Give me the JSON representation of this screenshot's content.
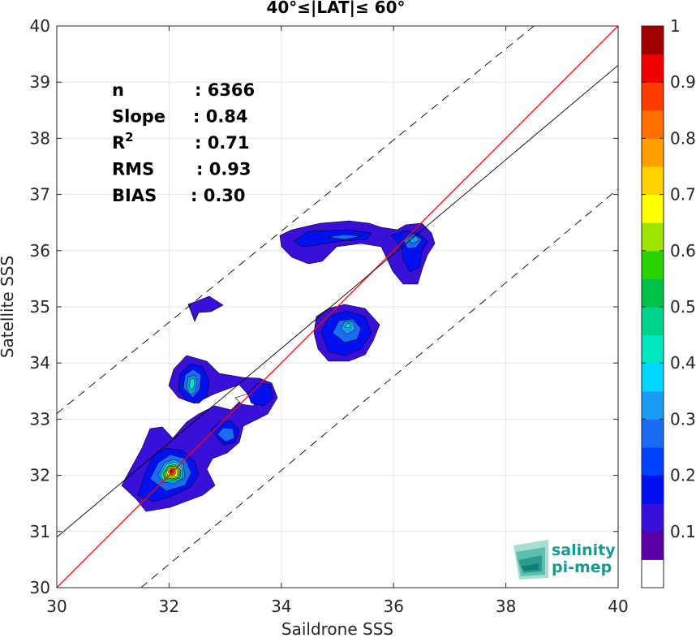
{
  "chart_data": {
    "type": "contour",
    "title": "40°≤|LAT|≤ 60°",
    "xlabel": "Saildrone SSS",
    "ylabel": "Satellite SSS",
    "xlim": [
      30,
      40
    ],
    "ylim": [
      30,
      40
    ],
    "xticks": [
      "30",
      "32",
      "34",
      "36",
      "38",
      "40"
    ],
    "yticks": [
      "30",
      "31",
      "32",
      "33",
      "34",
      "35",
      "36",
      "37",
      "38",
      "39",
      "40"
    ],
    "grid": true,
    "stats": [
      {
        "label": "n",
        "value": ": 6366"
      },
      {
        "label": "Slope",
        "value": ": 0.84"
      },
      {
        "label": "R",
        "sup": "2",
        "value": ": 0.71"
      },
      {
        "label": "RMS",
        "value": ": 0.93"
      },
      {
        "label": "BIAS",
        "value": ": 0.30"
      }
    ],
    "n": 6366,
    "slope": 0.84,
    "r2": 0.71,
    "rms": 0.93,
    "bias": 0.3,
    "lines": [
      {
        "kind": "identity",
        "color": "#ff0000",
        "x": [
          30,
          40
        ],
        "y": [
          30,
          40
        ]
      },
      {
        "kind": "regression",
        "color": "#000000",
        "x": [
          30,
          40
        ],
        "y": [
          30.9,
          39.3
        ]
      },
      {
        "kind": "upper-bound-dashed",
        "color": "#000000",
        "x": [
          30,
          38.5
        ],
        "y": [
          33.1,
          40
        ]
      },
      {
        "kind": "lower-bound-dashed",
        "color": "#000000",
        "x": [
          31.5,
          40
        ],
        "y": [
          30,
          37.1
        ]
      }
    ],
    "density_peaks": [
      {
        "x": 32.1,
        "y": 32.15,
        "value": 1.0
      },
      {
        "x": 32.4,
        "y": 33.7,
        "value": 0.42
      },
      {
        "x": 35.1,
        "y": 34.65,
        "value": 0.4
      },
      {
        "x": 35.3,
        "y": 36.22,
        "value": 0.25
      },
      {
        "x": 36.35,
        "y": 36.2,
        "value": 0.35
      },
      {
        "x": 33.05,
        "y": 32.7,
        "value": 0.3
      },
      {
        "x": 32.6,
        "y": 35.05,
        "value": 0.1
      }
    ],
    "colorbar": {
      "ticks": [
        "0.1",
        "0.2",
        "0.3",
        "0.4",
        "0.5",
        "0.6",
        "0.7",
        "0.8",
        "0.9",
        "1"
      ],
      "levels": [
        0,
        0.05,
        0.1,
        0.15,
        0.2,
        0.25,
        0.3,
        0.35,
        0.4,
        0.45,
        0.5,
        0.55,
        0.6,
        0.65,
        0.7,
        0.75,
        0.8,
        0.85,
        0.9,
        0.95,
        1
      ],
      "colors": [
        "#ffffff",
        "#5a00a8",
        "#3a10d8",
        "#0010f0",
        "#0040ff",
        "#1a6cf2",
        "#1a9cf5",
        "#00d6ff",
        "#00e6c0",
        "#00d38c",
        "#00c24a",
        "#2ad200",
        "#9ee400",
        "#ffff00",
        "#ffd200",
        "#ffa000",
        "#ff7000",
        "#ff3c00",
        "#f00000",
        "#a00000"
      ]
    }
  },
  "logo": {
    "line1": "salinity",
    "line2": "pi-mep"
  }
}
